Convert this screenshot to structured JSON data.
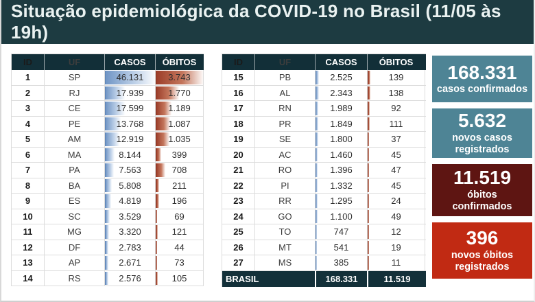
{
  "title": "Situação epidemiológica da COVID-19 no Brasil (11/05 às 19h)",
  "colors": {
    "titlebar_bg": "#1d3b41",
    "table_header_bg": "#122f38",
    "total_row_bg": "#133039",
    "casos_bar": "#7095c5",
    "obitos_bar": "#9c3e2a",
    "card_teal": "#4e8495",
    "card_dark_red": "#5e1512",
    "card_red": "#c12a13"
  },
  "table": {
    "headers": [
      "ID",
      "UF",
      "CASOS",
      "ÓBITOS"
    ],
    "max_casos": 46131,
    "max_obitos": 3743,
    "left_rows": [
      {
        "id": "1",
        "uf": "SP",
        "casos": "46.131",
        "casos_n": 46131,
        "obitos": "3.743",
        "obitos_n": 3743
      },
      {
        "id": "2",
        "uf": "RJ",
        "casos": "17.939",
        "casos_n": 17939,
        "obitos": "1.770",
        "obitos_n": 1770
      },
      {
        "id": "3",
        "uf": "CE",
        "casos": "17.599",
        "casos_n": 17599,
        "obitos": "1.189",
        "obitos_n": 1189
      },
      {
        "id": "4",
        "uf": "PE",
        "casos": "13.768",
        "casos_n": 13768,
        "obitos": "1.087",
        "obitos_n": 1087
      },
      {
        "id": "5",
        "uf": "AM",
        "casos": "12.919",
        "casos_n": 12919,
        "obitos": "1.035",
        "obitos_n": 1035
      },
      {
        "id": "6",
        "uf": "MA",
        "casos": "8.144",
        "casos_n": 8144,
        "obitos": "399",
        "obitos_n": 399
      },
      {
        "id": "7",
        "uf": "PA",
        "casos": "7.563",
        "casos_n": 7563,
        "obitos": "708",
        "obitos_n": 708
      },
      {
        "id": "8",
        "uf": "BA",
        "casos": "5.808",
        "casos_n": 5808,
        "obitos": "211",
        "obitos_n": 211
      },
      {
        "id": "9",
        "uf": "ES",
        "casos": "4.819",
        "casos_n": 4819,
        "obitos": "196",
        "obitos_n": 196
      },
      {
        "id": "10",
        "uf": "SC",
        "casos": "3.529",
        "casos_n": 3529,
        "obitos": "69",
        "obitos_n": 69
      },
      {
        "id": "11",
        "uf": "MG",
        "casos": "3.320",
        "casos_n": 3320,
        "obitos": "121",
        "obitos_n": 121
      },
      {
        "id": "12",
        "uf": "DF",
        "casos": "2.783",
        "casos_n": 2783,
        "obitos": "44",
        "obitos_n": 44
      },
      {
        "id": "13",
        "uf": "AP",
        "casos": "2.671",
        "casos_n": 2671,
        "obitos": "73",
        "obitos_n": 73
      },
      {
        "id": "14",
        "uf": "RS",
        "casos": "2.576",
        "casos_n": 2576,
        "obitos": "105",
        "obitos_n": 105
      }
    ],
    "right_rows": [
      {
        "id": "15",
        "uf": "PB",
        "casos": "2.525",
        "casos_n": 2525,
        "obitos": "139",
        "obitos_n": 139
      },
      {
        "id": "16",
        "uf": "AL",
        "casos": "2.343",
        "casos_n": 2343,
        "obitos": "138",
        "obitos_n": 138
      },
      {
        "id": "17",
        "uf": "RN",
        "casos": "1.989",
        "casos_n": 1989,
        "obitos": "92",
        "obitos_n": 92
      },
      {
        "id": "18",
        "uf": "PR",
        "casos": "1.849",
        "casos_n": 1849,
        "obitos": "111",
        "obitos_n": 111
      },
      {
        "id": "19",
        "uf": "SE",
        "casos": "1.800",
        "casos_n": 1800,
        "obitos": "37",
        "obitos_n": 37
      },
      {
        "id": "20",
        "uf": "AC",
        "casos": "1.460",
        "casos_n": 1460,
        "obitos": "45",
        "obitos_n": 45
      },
      {
        "id": "21",
        "uf": "RO",
        "casos": "1.396",
        "casos_n": 1396,
        "obitos": "47",
        "obitos_n": 47
      },
      {
        "id": "22",
        "uf": "PI",
        "casos": "1.332",
        "casos_n": 1332,
        "obitos": "45",
        "obitos_n": 45
      },
      {
        "id": "23",
        "uf": "RR",
        "casos": "1.295",
        "casos_n": 1295,
        "obitos": "24",
        "obitos_n": 24
      },
      {
        "id": "24",
        "uf": "GO",
        "casos": "1.100",
        "casos_n": 1100,
        "obitos": "49",
        "obitos_n": 49
      },
      {
        "id": "25",
        "uf": "TO",
        "casos": "747",
        "casos_n": 747,
        "obitos": "12",
        "obitos_n": 12
      },
      {
        "id": "26",
        "uf": "MT",
        "casos": "541",
        "casos_n": 541,
        "obitos": "19",
        "obitos_n": 19
      },
      {
        "id": "27",
        "uf": "MS",
        "casos": "385",
        "casos_n": 385,
        "obitos": "11",
        "obitos_n": 11
      }
    ],
    "total": {
      "label": "BRASIL",
      "casos": "168.331",
      "obitos": "11.519"
    }
  },
  "cards": [
    {
      "value": "168.331",
      "label_lines": [
        "casos confirmados"
      ],
      "color": "#4e8495"
    },
    {
      "value": "5.632",
      "label_lines": [
        "novos casos",
        "registrados"
      ],
      "color": "#4e8495"
    },
    {
      "value": "11.519",
      "label_lines": [
        "óbitos",
        "confirmados"
      ],
      "color": "#5e1512"
    },
    {
      "value": "396",
      "label_lines": [
        "novos óbitos",
        "registrados"
      ],
      "color": "#c12a13"
    }
  ],
  "chart_data": {
    "type": "table",
    "title": "Situação epidemiológica da COVID-19 no Brasil (11/05 às 19h)",
    "columns": [
      "ID",
      "UF",
      "CASOS",
      "ÓBITOS"
    ],
    "rows": [
      [
        1,
        "SP",
        46131,
        3743
      ],
      [
        2,
        "RJ",
        17939,
        1770
      ],
      [
        3,
        "CE",
        17599,
        1189
      ],
      [
        4,
        "PE",
        13768,
        1087
      ],
      [
        5,
        "AM",
        12919,
        1035
      ],
      [
        6,
        "MA",
        8144,
        399
      ],
      [
        7,
        "PA",
        7563,
        708
      ],
      [
        8,
        "BA",
        5808,
        211
      ],
      [
        9,
        "ES",
        4819,
        196
      ],
      [
        10,
        "SC",
        3529,
        69
      ],
      [
        11,
        "MG",
        3320,
        121
      ],
      [
        12,
        "DF",
        2783,
        44
      ],
      [
        13,
        "AP",
        2671,
        73
      ],
      [
        14,
        "RS",
        2576,
        105
      ],
      [
        15,
        "PB",
        2525,
        139
      ],
      [
        16,
        "AL",
        2343,
        138
      ],
      [
        17,
        "RN",
        1989,
        92
      ],
      [
        18,
        "PR",
        1849,
        111
      ],
      [
        19,
        "SE",
        1800,
        37
      ],
      [
        20,
        "AC",
        1460,
        45
      ],
      [
        21,
        "RO",
        1396,
        47
      ],
      [
        22,
        "PI",
        1332,
        45
      ],
      [
        23,
        "RR",
        1295,
        24
      ],
      [
        24,
        "GO",
        1100,
        49
      ],
      [
        25,
        "TO",
        747,
        12
      ],
      [
        26,
        "MT",
        541,
        19
      ],
      [
        27,
        "MS",
        385,
        11
      ]
    ],
    "total": {
      "label": "BRASIL",
      "casos": 168331,
      "obitos": 11519
    },
    "summary_stats": [
      {
        "value": 168331,
        "label": "casos confirmados"
      },
      {
        "value": 5632,
        "label": "novos casos registrados"
      },
      {
        "value": 11519,
        "label": "óbitos confirmados"
      },
      {
        "value": 396,
        "label": "novos óbitos registrados"
      }
    ]
  }
}
